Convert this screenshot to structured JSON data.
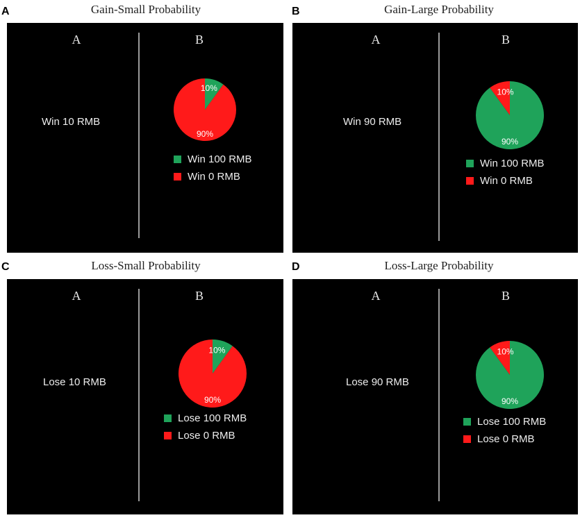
{
  "colors": {
    "green": "#1fa35a",
    "red": "#ff1a1a"
  },
  "panels": [
    {
      "letter": "A",
      "title": "Gain-Small Probability",
      "col_a": "A",
      "col_b": "B",
      "option_a": "Win 10 RMB",
      "pie": {
        "green_pct": 10,
        "red_pct": 90,
        "green_label": "10%",
        "red_label": "90%"
      },
      "legend": [
        {
          "color": "green",
          "label": "Win 100 RMB"
        },
        {
          "color": "red",
          "label": "Win 0 RMB"
        }
      ]
    },
    {
      "letter": "B",
      "title": "Gain-Large Probability",
      "col_a": "A",
      "col_b": "B",
      "option_a": "Win 90 RMB",
      "pie": {
        "green_pct": 90,
        "red_pct": 10,
        "green_label": "90%",
        "red_label": "10%"
      },
      "legend": [
        {
          "color": "green",
          "label": "Win 100 RMB"
        },
        {
          "color": "red",
          "label": "Win 0 RMB"
        }
      ]
    },
    {
      "letter": "C",
      "title": "Loss-Small Probability",
      "col_a": "A",
      "col_b": "B",
      "option_a": "Lose 10 RMB",
      "pie": {
        "green_pct": 10,
        "red_pct": 90,
        "green_label": "10%",
        "red_label": "90%"
      },
      "legend": [
        {
          "color": "green",
          "label": "Lose 100 RMB"
        },
        {
          "color": "red",
          "label": "Lose 0 RMB"
        }
      ]
    },
    {
      "letter": "D",
      "title": "Loss-Large Probability",
      "col_a": "A",
      "col_b": "B",
      "option_a": "Lose 90 RMB",
      "pie": {
        "green_pct": 90,
        "red_pct": 10,
        "green_label": "90%",
        "red_label": "10%"
      },
      "legend": [
        {
          "color": "green",
          "label": "Lose 100 RMB"
        },
        {
          "color": "red",
          "label": "Lose 0 RMB"
        }
      ]
    }
  ]
}
